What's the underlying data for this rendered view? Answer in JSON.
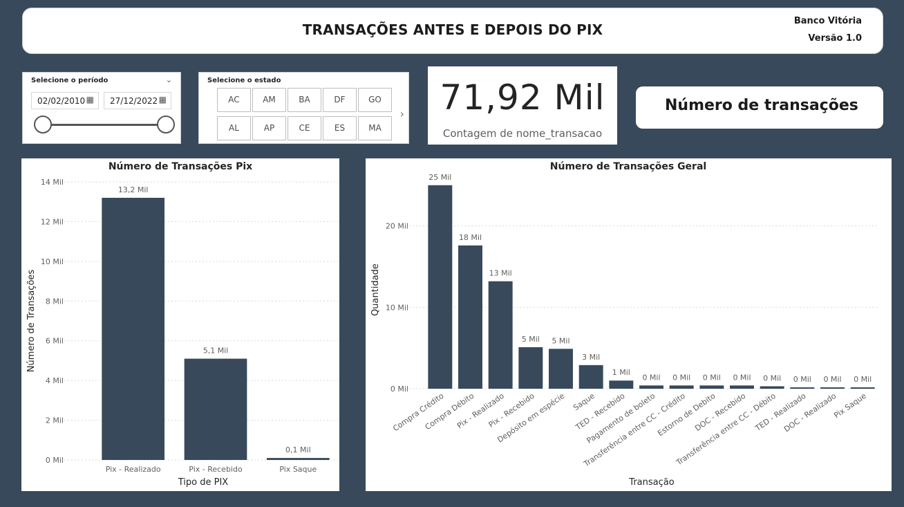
{
  "header": {
    "title": "TRANSAÇÕES ANTES E DEPOIS DO PIX",
    "bank": "Banco Vitória",
    "version": "Versão 1.0"
  },
  "period_slicer": {
    "title": "Selecione o período",
    "start_date": "02/02/2010",
    "end_date": "27/12/2022"
  },
  "state_slicer": {
    "title": "Selecione o estado",
    "states": [
      "AC",
      "AM",
      "BA",
      "DF",
      "GO",
      "AL",
      "AP",
      "CE",
      "ES",
      "MA"
    ]
  },
  "kpi": {
    "value": "71,92 Mil",
    "caption": "Contagem de nome_transacao"
  },
  "label_card": {
    "text": "Número de transações"
  },
  "icons": {
    "dropdown": "chevron-down-icon",
    "calendar": "calendar-icon",
    "next": "chevron-right-icon"
  },
  "colors": {
    "background": "#37495a",
    "bar": "#37495a"
  },
  "chart_data": [
    {
      "type": "bar",
      "title": "Número de Transações Pix",
      "xlabel": "Tipo de PIX",
      "ylabel": "Número de Transações",
      "categories": [
        "Pix - Realizado",
        "Pix - Recebido",
        "Pix Saque"
      ],
      "values": [
        13.2,
        5.1,
        0.1
      ],
      "data_labels": [
        "13,2 Mil",
        "5,1 Mil",
        "0,1 Mil"
      ],
      "ylim": [
        0,
        14
      ],
      "yticks": [
        0,
        2,
        4,
        6,
        8,
        10,
        12,
        14
      ],
      "ytick_labels": [
        "0 Mil",
        "2 Mil",
        "4 Mil",
        "6 Mil",
        "8 Mil",
        "10 Mil",
        "12 Mil",
        "14 Mil"
      ],
      "grid": true
    },
    {
      "type": "bar",
      "title": "Número de Transações Geral",
      "xlabel": "Transação",
      "ylabel": "Quantidade",
      "categories": [
        "Compra Crédito",
        "Compra Débito",
        "Pix - Realizado",
        "Pix - Recebido",
        "Depósito em espécie",
        "Saque",
        "TED - Recebido",
        "Pagamento de boleto",
        "Transferência entre CC - Crédito",
        "Estorno de Debito",
        "DOC - Recebido",
        "Transferência entre CC - Débito",
        "TED - Realizado",
        "DOC - Realizado",
        "Pix Saque"
      ],
      "values": [
        25,
        17.6,
        13.2,
        5.1,
        4.9,
        2.9,
        1.0,
        0.4,
        0.4,
        0.4,
        0.4,
        0.3,
        0.1,
        0.1,
        0.1
      ],
      "data_labels": [
        "25 Mil",
        "18 Mil",
        "13 Mil",
        "5 Mil",
        "5 Mil",
        "3 Mil",
        "1 Mil",
        "0 Mil",
        "0 Mil",
        "0 Mil",
        "0 Mil",
        "0 Mil",
        "0 Mil",
        "0 Mil",
        "0 Mil"
      ],
      "ylim": [
        0,
        26
      ],
      "yticks": [
        0,
        10,
        20
      ],
      "ytick_labels": [
        "0 Mil",
        "10 Mil",
        "20 Mil"
      ],
      "grid": true
    }
  ]
}
